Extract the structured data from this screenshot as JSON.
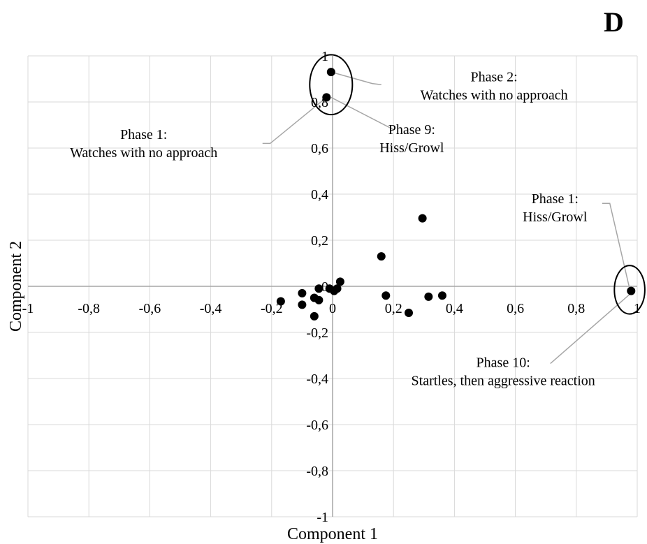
{
  "panel_label": "D",
  "chart_data": {
    "type": "scatter",
    "title": "",
    "xlabel": "Component 1",
    "ylabel": "Component 2",
    "xlim": [
      -1,
      1
    ],
    "ylim": [
      -1,
      1
    ],
    "grid": true,
    "x_ticks": [
      -1,
      -0.8,
      -0.6,
      -0.4,
      -0.2,
      0,
      0.2,
      0.4,
      0.6,
      0.8,
      1
    ],
    "x_tick_labels": [
      "-1",
      "-0,8",
      "-0,6",
      "-0,4",
      "-0,2",
      "0",
      "0,2",
      "0,4",
      "0,6",
      "0,8",
      "1"
    ],
    "y_ticks": [
      -1,
      -0.8,
      -0.6,
      -0.4,
      -0.2,
      0,
      0.2,
      0.4,
      0.6,
      0.8,
      1
    ],
    "y_tick_labels": [
      "-1",
      "-0,8",
      "-0,6",
      "-0,4",
      "-0,2",
      "0",
      "0,2",
      "0,4",
      "0,6",
      "0,8",
      "1"
    ],
    "points": [
      {
        "x": -0.005,
        "y": 0.93
      },
      {
        "x": -0.02,
        "y": 0.82
      },
      {
        "x": 0.295,
        "y": 0.295
      },
      {
        "x": 0.16,
        "y": 0.13
      },
      {
        "x": 0.025,
        "y": 0.02
      },
      {
        "x": 0.015,
        "y": -0.01
      },
      {
        "x": 0.005,
        "y": -0.02
      },
      {
        "x": -0.01,
        "y": -0.01
      },
      {
        "x": -0.045,
        "y": -0.01
      },
      {
        "x": -0.06,
        "y": -0.05
      },
      {
        "x": -0.045,
        "y": -0.06
      },
      {
        "x": -0.1,
        "y": -0.03
      },
      {
        "x": -0.1,
        "y": -0.08
      },
      {
        "x": -0.17,
        "y": -0.065
      },
      {
        "x": -0.06,
        "y": -0.13
      },
      {
        "x": 0.175,
        "y": -0.04
      },
      {
        "x": 0.25,
        "y": -0.115
      },
      {
        "x": 0.315,
        "y": -0.045
      },
      {
        "x": 0.36,
        "y": -0.04
      },
      {
        "x": 0.98,
        "y": -0.02
      }
    ],
    "annotations": [
      {
        "lines": [
          "Phase 2:",
          "Watches with no approach"
        ],
        "x": 0.53,
        "y": 0.89,
        "anchor": "middle"
      },
      {
        "lines": [
          "Phase 1:",
          "Watches with no approach"
        ],
        "x": -0.62,
        "y": 0.64,
        "anchor": "middle"
      },
      {
        "lines": [
          "Phase 9:",
          "Hiss/Growl"
        ],
        "x": 0.26,
        "y": 0.66,
        "anchor": "middle"
      },
      {
        "lines": [
          "Phase 1:",
          "Hiss/Growl"
        ],
        "x": 0.73,
        "y": 0.36,
        "anchor": "middle"
      },
      {
        "lines": [
          "Phase 10:",
          "Startles, then aggressive reaction"
        ],
        "x": 0.56,
        "y": -0.35,
        "anchor": "middle"
      }
    ],
    "callouts": [
      {
        "points": [
          [
            -0.005,
            0.93
          ],
          [
            0.13,
            0.88
          ],
          [
            0.16,
            0.875
          ]
        ]
      },
      {
        "points": [
          [
            -0.02,
            0.82
          ],
          [
            -0.205,
            0.62
          ],
          [
            -0.23,
            0.62
          ]
        ]
      },
      {
        "points": [
          [
            -0.005,
            0.82
          ],
          [
            0.2,
            0.68
          ]
        ]
      },
      {
        "points": [
          [
            0.885,
            0.36
          ],
          [
            0.91,
            0.36
          ],
          [
            0.975,
            -0.01
          ]
        ]
      },
      {
        "points": [
          [
            0.975,
            -0.035
          ],
          [
            0.715,
            -0.335
          ]
        ]
      }
    ],
    "ellipses": [
      {
        "cx": -0.005,
        "cy": 0.875,
        "rx": 0.07,
        "ry": 0.13
      },
      {
        "cx": 0.975,
        "cy": -0.015,
        "rx": 0.05,
        "ry": 0.105
      }
    ]
  }
}
